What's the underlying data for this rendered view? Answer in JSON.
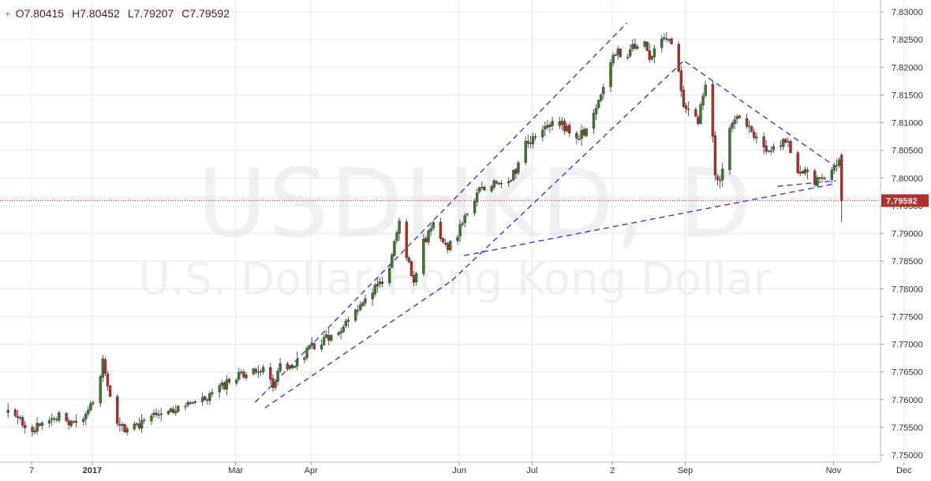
{
  "ohlc": {
    "open_label": "O",
    "open": "7.80415",
    "high_label": "H",
    "high": "7.80452",
    "low_label": "L",
    "low": "7.79207",
    "close_label": "C",
    "close": "7.79592"
  },
  "watermark": {
    "symbol": "USDHKD, D",
    "name": "U.S. Dollar/Hong Kong Dollar"
  },
  "colors": {
    "up": "#3a7a2e",
    "down": "#b0302a",
    "trendline": "#3b3bd9",
    "price_line": "#b0302a",
    "grid": "#e8e8e8"
  },
  "chart_data": {
    "type": "candlestick",
    "symbol": "USDHKD",
    "interval": "D",
    "ylim": [
      7.748,
      7.831
    ],
    "y_ticks": [
      "7.83000",
      "7.82500",
      "7.82000",
      "7.81500",
      "7.81000",
      "7.80500",
      "7.80000",
      "7.79500",
      "7.79000",
      "7.78500",
      "7.78000",
      "7.77500",
      "7.77000",
      "7.76500",
      "7.76000",
      "7.75500",
      "7.75000"
    ],
    "last_price_label": "7.79592",
    "last_price": 7.79592,
    "x_labels": [
      {
        "label": "7",
        "day": 0,
        "bold": false
      },
      {
        "label": "2017",
        "day": 25,
        "bold": true
      },
      {
        "label": "Mar",
        "day": 84,
        "bold": false
      },
      {
        "label": "Apr",
        "day": 115,
        "bold": false
      },
      {
        "label": "Jun",
        "day": 176,
        "bold": false
      },
      {
        "label": "Jul",
        "day": 206,
        "bold": false
      },
      {
        "label": "2",
        "day": 239,
        "bold": false
      },
      {
        "label": "Sep",
        "day": 269,
        "bold": false
      },
      {
        "label": "Nov",
        "day": 330,
        "bold": false
      },
      {
        "label": "Dec",
        "day": 359,
        "bold": false
      }
    ],
    "price_path": [
      [
        -10,
        7.7575
      ],
      [
        0,
        7.7548
      ],
      [
        5,
        7.7553
      ],
      [
        10,
        7.7572
      ],
      [
        16,
        7.7555
      ],
      [
        22,
        7.7567
      ],
      [
        26,
        7.761
      ],
      [
        29,
        7.7668
      ],
      [
        32,
        7.76
      ],
      [
        35,
        7.756
      ],
      [
        38,
        7.7545
      ],
      [
        45,
        7.7555
      ],
      [
        50,
        7.7578
      ],
      [
        56,
        7.7583
      ],
      [
        62,
        7.7585
      ],
      [
        68,
        7.7595
      ],
      [
        75,
        7.761
      ],
      [
        82,
        7.7638
      ],
      [
        88,
        7.7645
      ],
      [
        95,
        7.7655
      ],
      [
        99,
        7.7625
      ],
      [
        102,
        7.766
      ],
      [
        108,
        7.7665
      ],
      [
        115,
        7.7695
      ],
      [
        120,
        7.7708
      ],
      [
        126,
        7.772
      ],
      [
        131,
        7.7745
      ],
      [
        136,
        7.778
      ],
      [
        140,
        7.7795
      ],
      [
        146,
        7.7825
      ],
      [
        151,
        7.7915
      ],
      [
        154,
        7.786
      ],
      [
        157,
        7.7815
      ],
      [
        160,
        7.7875
      ],
      [
        165,
        7.7915
      ],
      [
        171,
        7.7875
      ],
      [
        175,
        7.79
      ],
      [
        180,
        7.7945
      ],
      [
        185,
        7.7985
      ],
      [
        190,
        7.799
      ],
      [
        195,
        7.7985
      ],
      [
        200,
        7.802
      ],
      [
        203,
        7.806
      ],
      [
        207,
        7.808
      ],
      [
        212,
        7.809
      ],
      [
        216,
        7.81
      ],
      [
        220,
        7.809
      ],
      [
        225,
        7.8075
      ],
      [
        228,
        7.8085
      ],
      [
        232,
        7.8125
      ],
      [
        236,
        7.8185
      ],
      [
        240,
        7.823
      ],
      [
        244,
        7.8215
      ],
      [
        248,
        7.824
      ],
      [
        251,
        7.825
      ],
      [
        254,
        7.822
      ],
      [
        258,
        7.8245
      ],
      [
        262,
        7.8255
      ],
      [
        266,
        7.8185
      ],
      [
        268,
        7.813
      ],
      [
        271,
        7.8115
      ],
      [
        274,
        7.8105
      ],
      [
        277,
        7.8165
      ],
      [
        279,
        7.815
      ],
      [
        281,
        7.8005
      ],
      [
        283,
        7.799
      ],
      [
        286,
        7.8085
      ],
      [
        290,
        7.8105
      ],
      [
        295,
        7.809
      ],
      [
        299,
        7.806
      ],
      [
        303,
        7.8045
      ],
      [
        307,
        7.806
      ],
      [
        311,
        7.8065
      ],
      [
        315,
        7.8005
      ],
      [
        318,
        7.8015
      ],
      [
        322,
        7.799
      ],
      [
        326,
        7.8005
      ],
      [
        329,
        7.801
      ],
      [
        332,
        7.804
      ],
      [
        333,
        7.79592
      ]
    ],
    "trendlines": [
      {
        "name": "channel-upper",
        "from": [
          92,
          7.7595
        ],
        "to": [
          245,
          7.828
        ]
      },
      {
        "name": "channel-lower-a",
        "from": [
          96,
          7.7585
        ],
        "to": [
          173,
          7.7815
        ]
      },
      {
        "name": "channel-lower-b",
        "from": [
          173,
          7.7815
        ],
        "to": [
          268,
          7.821
        ]
      },
      {
        "name": "descending-resistance",
        "from": [
          269,
          7.821
        ],
        "to": [
          331,
          7.802
        ]
      },
      {
        "name": "support-from-june",
        "from": [
          178,
          7.786
        ],
        "to": [
          331,
          7.799
        ]
      },
      {
        "name": "short-support",
        "from": [
          307,
          7.7985
        ],
        "to": [
          331,
          7.7995
        ]
      }
    ]
  }
}
